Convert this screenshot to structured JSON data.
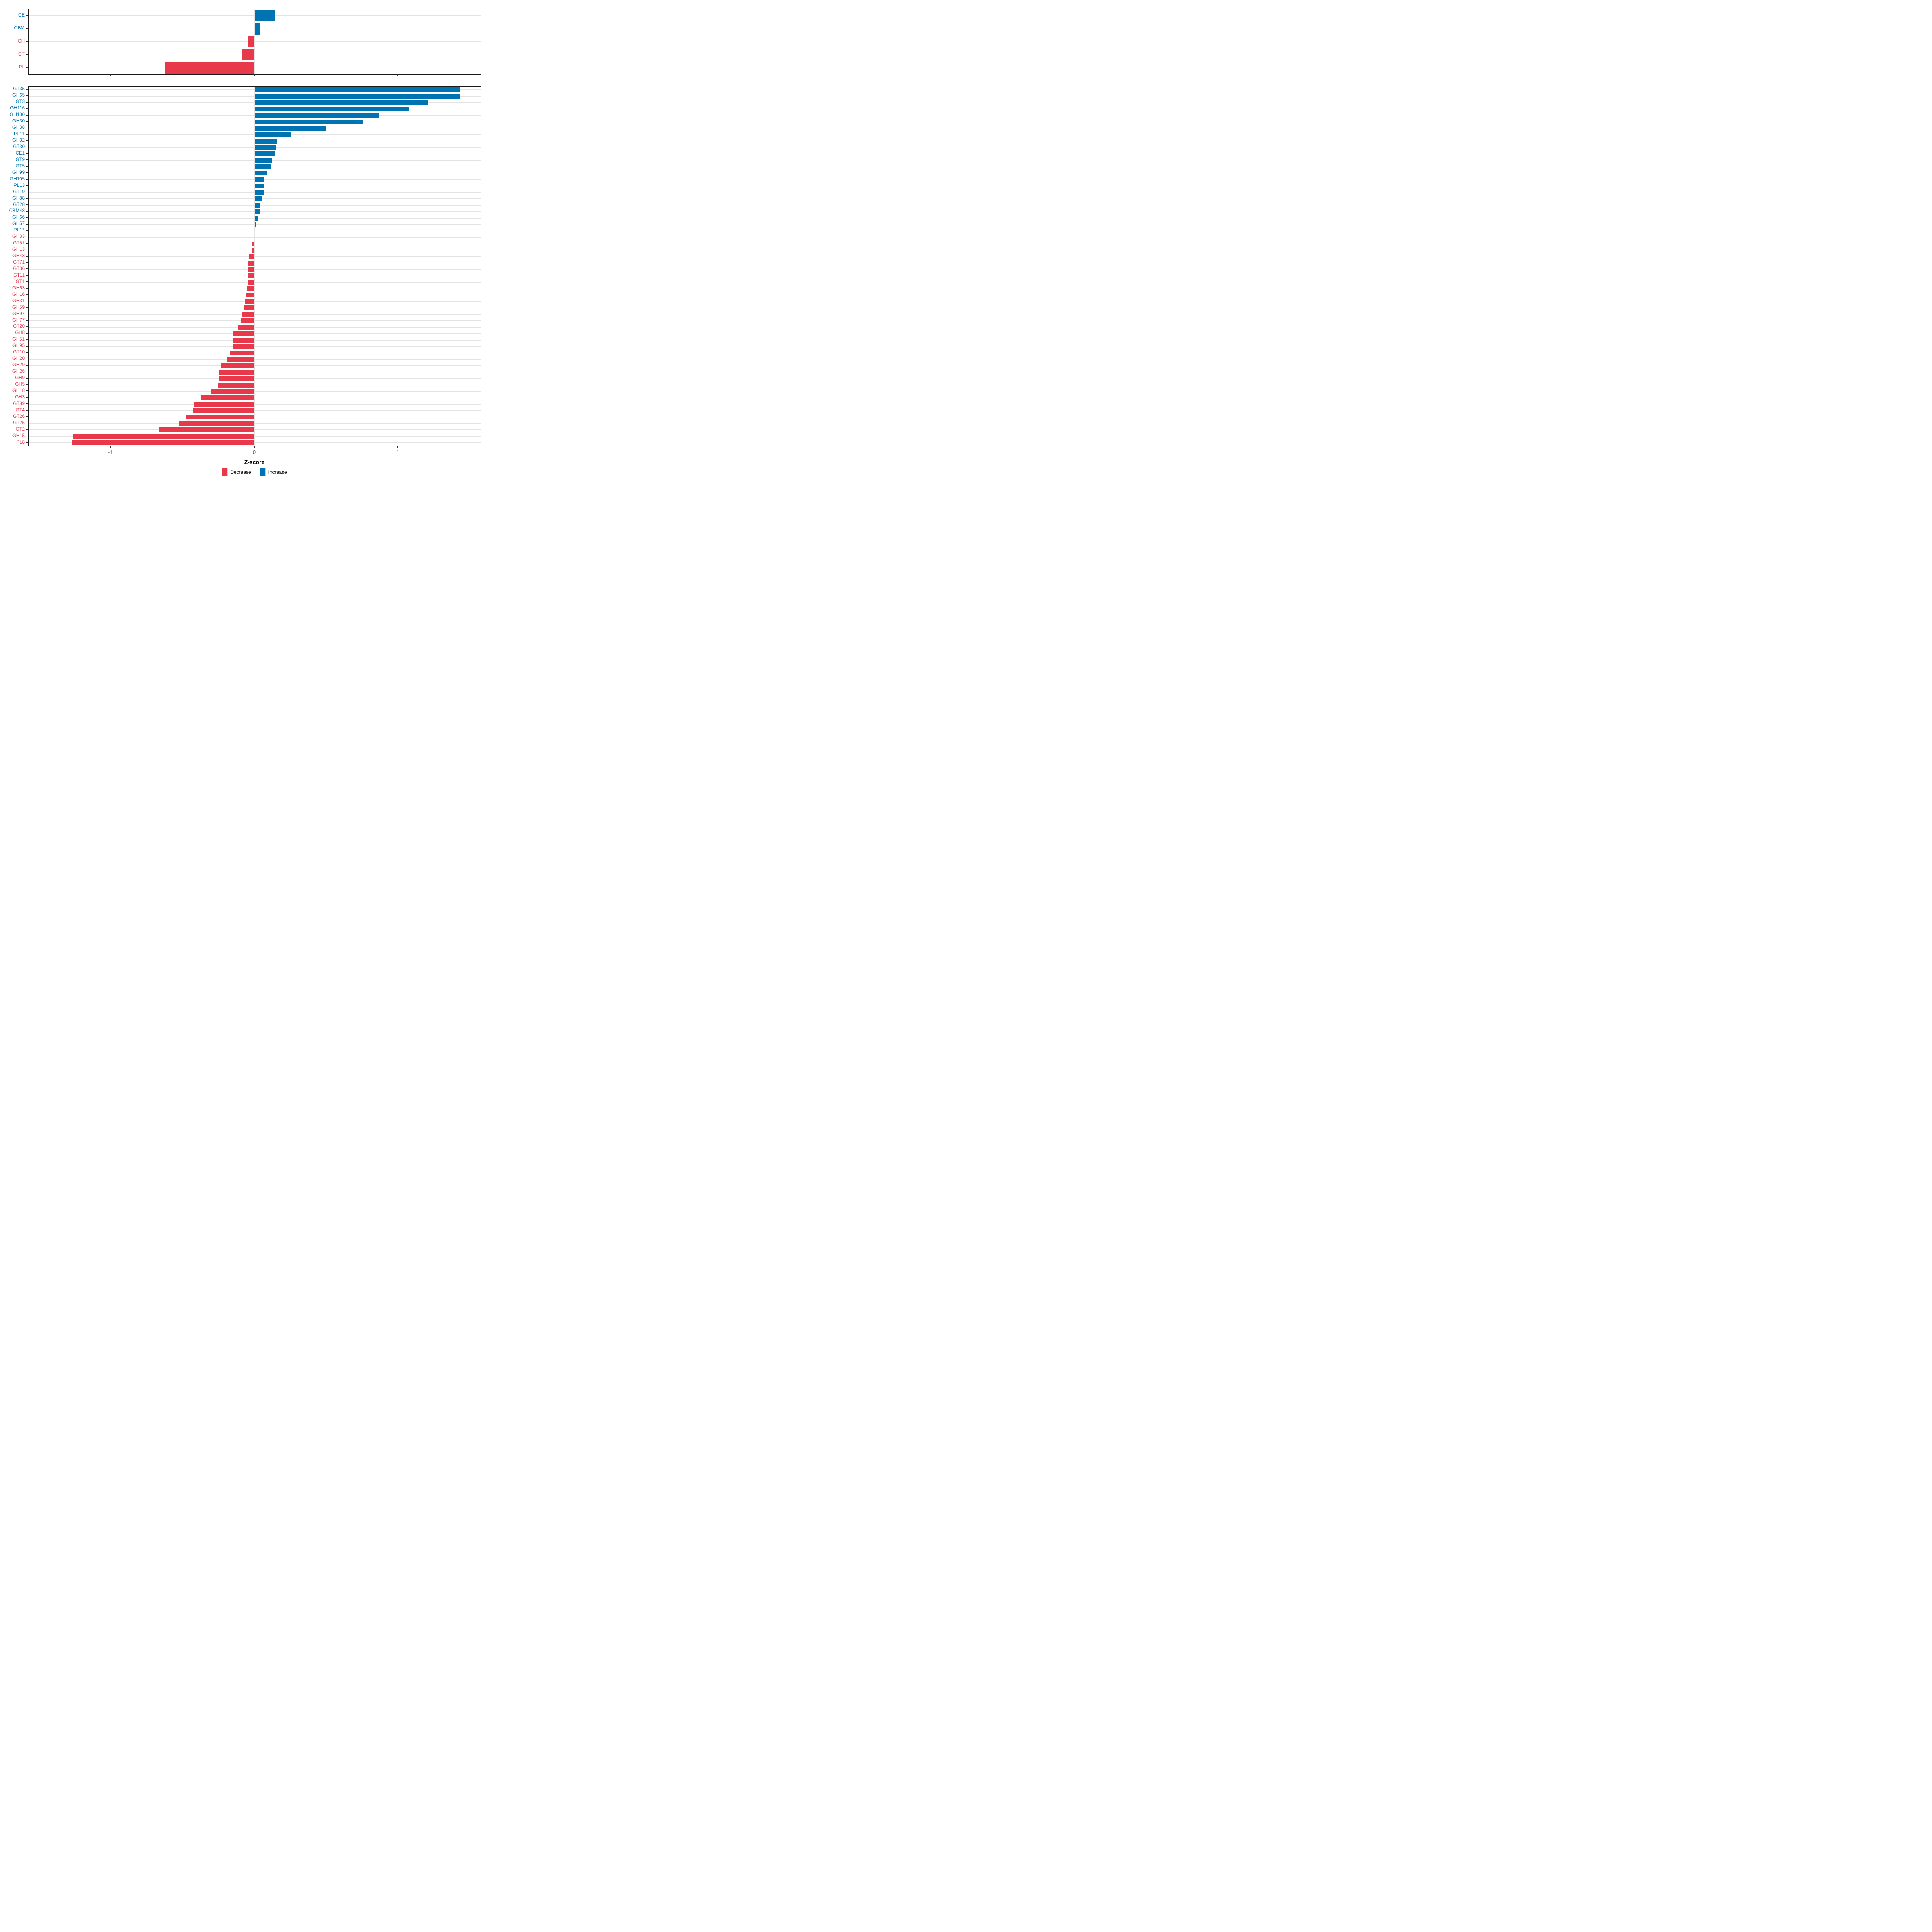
{
  "figure_title": "",
  "colors": {
    "increase": "#0073b2",
    "decrease": "#e8394b",
    "grid": "#e3e3e3",
    "panel_border": "#1a1a1a",
    "tick": "#333333",
    "tick_label": "#4d4d4d"
  },
  "x_axis": {
    "label": "Z-score",
    "ticks": [
      -1,
      0,
      1
    ],
    "tick_labels": [
      "-1",
      "0",
      "1"
    ],
    "range": [
      -1.573,
      1.573
    ]
  },
  "legend": {
    "position": "bottom",
    "items": [
      {
        "label": "Decrease",
        "color": "#e8394b"
      },
      {
        "label": "Increase",
        "color": "#0073b2"
      }
    ]
  },
  "chart_data": [
    {
      "type": "bar",
      "orientation": "horizontal",
      "panel": "cazyme-class",
      "title": "",
      "xlabel": "Z-score",
      "ylabel": "",
      "xlim": [
        -1.573,
        1.573
      ],
      "grid": true,
      "categories": [
        "CE",
        "CBM",
        "GH",
        "GT",
        "PL"
      ],
      "values": [
        0.145,
        0.041,
        -0.05,
        -0.085,
        -0.62
      ]
    },
    {
      "type": "bar",
      "orientation": "horizontal",
      "panel": "cazyme-family",
      "title": "",
      "xlabel": "Z-score",
      "ylabel": "",
      "xlim": [
        -1.573,
        1.573
      ],
      "grid": true,
      "categories": [
        "GT35",
        "GH65",
        "GT3",
        "GH116",
        "GH130",
        "GH30",
        "GH38",
        "PL11",
        "GH32",
        "GT30",
        "CE1",
        "GT9",
        "GT5",
        "GH99",
        "GH105",
        "PL13",
        "GT19",
        "GH88",
        "GT28",
        "CBM48",
        "GH66",
        "GH57",
        "PL12",
        "GH33",
        "GT51",
        "GH13",
        "GH43",
        "GT71",
        "GT36",
        "GT11",
        "GT1",
        "GH63",
        "GH16",
        "GH31",
        "GH59",
        "GH97",
        "GH77",
        "GT20",
        "GH8",
        "GH51",
        "GH95",
        "GT10",
        "GH20",
        "GH29",
        "GH26",
        "GH9",
        "GH5",
        "GH18",
        "GH3",
        "GT89",
        "GT4",
        "GT26",
        "GT25",
        "GT2",
        "GH15",
        "PL8"
      ],
      "values": [
        1.43,
        1.428,
        1.21,
        1.075,
        0.865,
        0.755,
        0.495,
        0.253,
        0.153,
        0.149,
        0.144,
        0.122,
        0.114,
        0.086,
        0.067,
        0.064,
        0.062,
        0.05,
        0.04,
        0.038,
        0.024,
        0.008,
        0.005,
        -0.005,
        -0.021,
        -0.022,
        -0.04,
        -0.047,
        -0.048,
        -0.049,
        -0.05,
        -0.055,
        -0.062,
        -0.068,
        -0.078,
        -0.085,
        -0.09,
        -0.117,
        -0.146,
        -0.15,
        -0.154,
        -0.169,
        -0.196,
        -0.232,
        -0.245,
        -0.251,
        -0.254,
        -0.303,
        -0.373,
        -0.418,
        -0.429,
        -0.474,
        -0.525,
        -0.664,
        -1.266,
        -1.274
      ]
    }
  ]
}
